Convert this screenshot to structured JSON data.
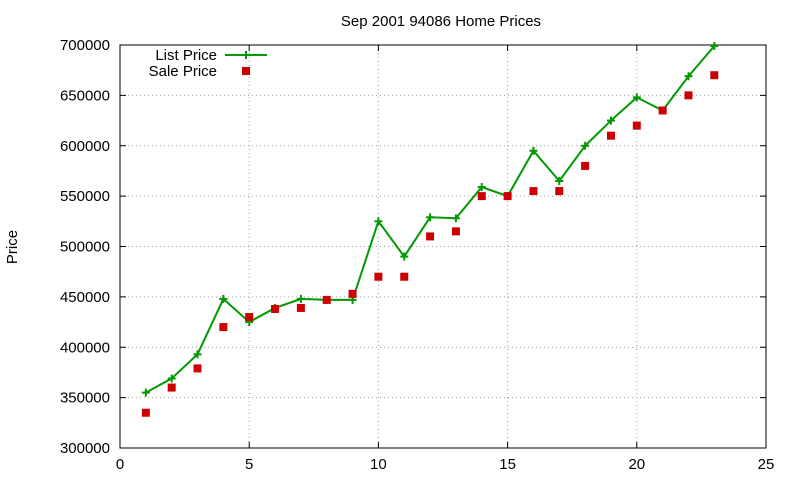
{
  "chart_data": {
    "type": "line",
    "title": "Sep 2001 94086 Home Prices",
    "xlabel": "",
    "ylabel": "Price",
    "xlim": [
      0,
      25
    ],
    "ylim": [
      300000,
      700000
    ],
    "x_ticks": [
      0,
      5,
      10,
      15,
      20,
      25
    ],
    "y_ticks": [
      300000,
      350000,
      400000,
      450000,
      500000,
      550000,
      600000,
      650000,
      700000
    ],
    "grid": true,
    "legend_position": "top-left",
    "series": [
      {
        "name": "List Price",
        "style": "line-plus",
        "color": "#009900",
        "x": [
          1,
          2,
          3,
          4,
          5,
          6,
          7,
          8,
          9,
          10,
          11,
          12,
          13,
          14,
          15,
          16,
          17,
          18,
          19,
          20,
          21,
          22,
          23
        ],
        "y": [
          355000,
          369000,
          393000,
          448000,
          425000,
          439000,
          448000,
          447000,
          447000,
          525000,
          490000,
          529000,
          528000,
          559000,
          550000,
          595000,
          565000,
          600000,
          625000,
          648000,
          635000,
          669000,
          699000
        ]
      },
      {
        "name": "Sale Price",
        "style": "square",
        "color": "#cc0000",
        "x": [
          1,
          2,
          3,
          4,
          5,
          6,
          7,
          8,
          9,
          10,
          11,
          12,
          13,
          14,
          15,
          16,
          17,
          18,
          19,
          20,
          21,
          22,
          23
        ],
        "y": [
          335000,
          360000,
          379000,
          420000,
          430000,
          438000,
          439000,
          447000,
          453000,
          470000,
          470000,
          510000,
          515000,
          550000,
          550000,
          555000,
          555000,
          580000,
          610000,
          620000,
          635000,
          650000,
          670000
        ]
      }
    ]
  }
}
